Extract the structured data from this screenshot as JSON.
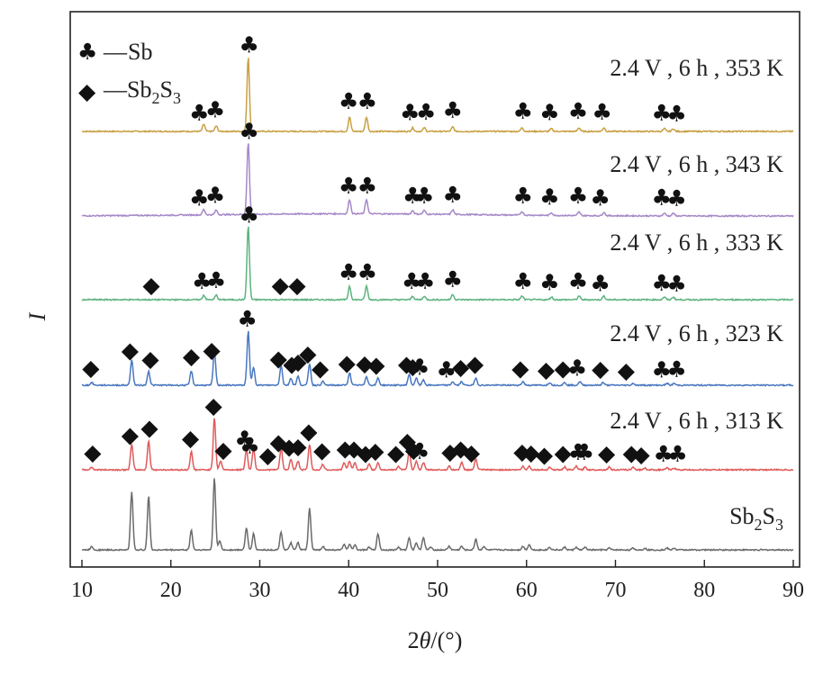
{
  "chart_data": {
    "type": "line",
    "xlabel_main": "2",
    "xlabel_theta": "θ",
    "xlabel_unit": "/(°)",
    "ylabel": "I",
    "xlim": [
      10,
      90
    ],
    "xticks": [
      10,
      20,
      30,
      40,
      50,
      60,
      70,
      80,
      90
    ],
    "yticks_visible": false,
    "legend": {
      "position": "top-left",
      "entries": [
        {
          "symbol": "♣",
          "dash": "—",
          "text": "Sb",
          "sub": "",
          "tail": ""
        },
        {
          "symbol": "◆",
          "dash": "—",
          "text": "Sb",
          "sub": "2",
          "text2": "S",
          "sub2": "3"
        }
      ]
    },
    "series": [
      {
        "name": "2.4 V , 6 h , 353 K",
        "color": "#c8a043",
        "peaks": [
          {
            "x": 23.7,
            "h": 8
          },
          {
            "x": 25.1,
            "h": 6
          },
          {
            "x": 28.7,
            "h": 82
          },
          {
            "x": 40.1,
            "h": 16
          },
          {
            "x": 42.0,
            "h": 16
          },
          {
            "x": 47.2,
            "h": 4
          },
          {
            "x": 48.5,
            "h": 4
          },
          {
            "x": 51.7,
            "h": 5
          },
          {
            "x": 59.5,
            "h": 4
          },
          {
            "x": 62.8,
            "h": 3
          },
          {
            "x": 65.9,
            "h": 4
          },
          {
            "x": 68.7,
            "h": 4
          },
          {
            "x": 75.5,
            "h": 3
          },
          {
            "x": 76.5,
            "h": 3
          }
        ],
        "markers": [
          {
            "x": 23.2,
            "sym": "♣"
          },
          {
            "x": 25.0,
            "sym": "♣"
          },
          {
            "x": 28.8,
            "sym": "♣"
          },
          {
            "x": 40.0,
            "sym": "♣"
          },
          {
            "x": 42.1,
            "sym": "♣"
          },
          {
            "x": 46.9,
            "sym": "♣"
          },
          {
            "x": 48.7,
            "sym": "♣"
          },
          {
            "x": 51.7,
            "sym": "♣"
          },
          {
            "x": 59.6,
            "sym": "♣"
          },
          {
            "x": 62.6,
            "sym": "♣"
          },
          {
            "x": 65.8,
            "sym": "♣"
          },
          {
            "x": 68.5,
            "sym": "♣"
          },
          {
            "x": 75.2,
            "sym": "♣"
          },
          {
            "x": 76.9,
            "sym": "♣"
          }
        ]
      },
      {
        "name": "2.4 V , 6 h , 343 K",
        "color": "#a688c8",
        "peaks": [
          {
            "x": 23.7,
            "h": 6
          },
          {
            "x": 25.1,
            "h": 5
          },
          {
            "x": 28.7,
            "h": 80
          },
          {
            "x": 40.1,
            "h": 16
          },
          {
            "x": 42.0,
            "h": 16
          },
          {
            "x": 47.2,
            "h": 4
          },
          {
            "x": 48.5,
            "h": 4
          },
          {
            "x": 51.7,
            "h": 5
          },
          {
            "x": 59.5,
            "h": 4
          },
          {
            "x": 62.8,
            "h": 3
          },
          {
            "x": 65.9,
            "h": 4
          },
          {
            "x": 68.7,
            "h": 4
          },
          {
            "x": 75.5,
            "h": 3
          },
          {
            "x": 76.5,
            "h": 3
          }
        ],
        "markers": [
          {
            "x": 23.2,
            "sym": "♣"
          },
          {
            "x": 25.0,
            "sym": "♣"
          },
          {
            "x": 28.8,
            "sym": "♣"
          },
          {
            "x": 40.0,
            "sym": "♣"
          },
          {
            "x": 42.1,
            "sym": "♣"
          },
          {
            "x": 47.2,
            "sym": "♣"
          },
          {
            "x": 48.5,
            "sym": "♣"
          },
          {
            "x": 51.7,
            "sym": "♣"
          },
          {
            "x": 59.6,
            "sym": "♣"
          },
          {
            "x": 62.6,
            "sym": "♣"
          },
          {
            "x": 65.8,
            "sym": "♣"
          },
          {
            "x": 68.3,
            "sym": "♣"
          },
          {
            "x": 75.2,
            "sym": "♣"
          },
          {
            "x": 76.9,
            "sym": "♣"
          }
        ]
      },
      {
        "name": "2.4 V , 6 h , 333 K",
        "color": "#5db37e",
        "peaks": [
          {
            "x": 23.7,
            "h": 5
          },
          {
            "x": 25.1,
            "h": 5
          },
          {
            "x": 28.7,
            "h": 82
          },
          {
            "x": 40.1,
            "h": 15
          },
          {
            "x": 42.0,
            "h": 15
          },
          {
            "x": 47.2,
            "h": 4
          },
          {
            "x": 48.5,
            "h": 4
          },
          {
            "x": 51.7,
            "h": 6
          },
          {
            "x": 59.5,
            "h": 4
          },
          {
            "x": 62.8,
            "h": 3
          },
          {
            "x": 65.9,
            "h": 4
          },
          {
            "x": 68.7,
            "h": 4
          },
          {
            "x": 75.5,
            "h": 3
          },
          {
            "x": 76.5,
            "h": 3
          }
        ],
        "markers": [
          {
            "x": 17.8,
            "sym": "◆"
          },
          {
            "x": 23.5,
            "sym": "♣"
          },
          {
            "x": 25.1,
            "sym": "♣"
          },
          {
            "x": 28.8,
            "sym": "♣"
          },
          {
            "x": 32.3,
            "sym": "◆"
          },
          {
            "x": 34.2,
            "sym": "◆"
          },
          {
            "x": 40.0,
            "sym": "♣"
          },
          {
            "x": 42.1,
            "sym": "♣"
          },
          {
            "x": 47.1,
            "sym": "♣"
          },
          {
            "x": 48.6,
            "sym": "♣"
          },
          {
            "x": 51.7,
            "sym": "♣"
          },
          {
            "x": 59.6,
            "sym": "♣"
          },
          {
            "x": 62.6,
            "sym": "♣"
          },
          {
            "x": 65.8,
            "sym": "♣"
          },
          {
            "x": 68.3,
            "sym": "♣"
          },
          {
            "x": 75.2,
            "sym": "♣"
          },
          {
            "x": 76.9,
            "sym": "♣"
          }
        ]
      },
      {
        "name": "2.4 V , 6 h , 323 K",
        "color": "#4a78c0",
        "peaks": [
          {
            "x": 11.1,
            "h": 3
          },
          {
            "x": 15.6,
            "h": 28
          },
          {
            "x": 17.5,
            "h": 16
          },
          {
            "x": 22.3,
            "h": 16
          },
          {
            "x": 24.9,
            "h": 38
          },
          {
            "x": 28.7,
            "h": 60
          },
          {
            "x": 29.3,
            "h": 20
          },
          {
            "x": 32.4,
            "h": 22
          },
          {
            "x": 33.5,
            "h": 8
          },
          {
            "x": 34.3,
            "h": 10
          },
          {
            "x": 35.6,
            "h": 24
          },
          {
            "x": 37.1,
            "h": 4
          },
          {
            "x": 40.1,
            "h": 14
          },
          {
            "x": 42.0,
            "h": 10
          },
          {
            "x": 43.3,
            "h": 8
          },
          {
            "x": 46.8,
            "h": 12
          },
          {
            "x": 47.6,
            "h": 8
          },
          {
            "x": 48.4,
            "h": 6
          },
          {
            "x": 51.7,
            "h": 4
          },
          {
            "x": 52.7,
            "h": 4
          },
          {
            "x": 54.3,
            "h": 8
          },
          {
            "x": 59.6,
            "h": 4
          },
          {
            "x": 62.6,
            "h": 3
          },
          {
            "x": 64.3,
            "h": 3
          },
          {
            "x": 66.0,
            "h": 4
          },
          {
            "x": 68.6,
            "h": 3
          },
          {
            "x": 72.0,
            "h": 2
          },
          {
            "x": 75.8,
            "h": 2
          },
          {
            "x": 76.6,
            "h": 2
          }
        ],
        "markers": [
          {
            "x": 11.0,
            "sym": "◆"
          },
          {
            "x": 15.4,
            "sym": "◆"
          },
          {
            "x": 17.7,
            "sym": "◆"
          },
          {
            "x": 22.3,
            "sym": "◆"
          },
          {
            "x": 24.6,
            "sym": "◆"
          },
          {
            "x": 28.6,
            "sym": "♣"
          },
          {
            "x": 32.1,
            "sym": "◆"
          },
          {
            "x": 33.6,
            "sym": "◆"
          },
          {
            "x": 34.3,
            "sym": "◆"
          },
          {
            "x": 35.4,
            "sym": "◆"
          },
          {
            "x": 36.8,
            "sym": "◆"
          },
          {
            "x": 39.8,
            "sym": "◆"
          },
          {
            "x": 41.8,
            "sym": "◆"
          },
          {
            "x": 43.1,
            "sym": "◆"
          },
          {
            "x": 46.5,
            "sym": "◆"
          },
          {
            "x": 47.2,
            "sym": "◆"
          },
          {
            "x": 48.0,
            "sym": "♣"
          },
          {
            "x": 51.0,
            "sym": "♣"
          },
          {
            "x": 52.6,
            "sym": "◆"
          },
          {
            "x": 54.2,
            "sym": "◆"
          },
          {
            "x": 59.3,
            "sym": "◆"
          },
          {
            "x": 62.2,
            "sym": "◆"
          },
          {
            "x": 64.1,
            "sym": "◆"
          },
          {
            "x": 65.7,
            "sym": "♣"
          },
          {
            "x": 68.3,
            "sym": "◆"
          },
          {
            "x": 71.2,
            "sym": "◆"
          },
          {
            "x": 75.2,
            "sym": "♣"
          },
          {
            "x": 76.9,
            "sym": "♣"
          }
        ]
      },
      {
        "name": "2.4 V , 6 h , 313 K",
        "color": "#e05a5a",
        "peaks": [
          {
            "x": 11.1,
            "h": 3
          },
          {
            "x": 15.6,
            "h": 28
          },
          {
            "x": 17.5,
            "h": 32
          },
          {
            "x": 22.3,
            "h": 20
          },
          {
            "x": 24.9,
            "h": 58
          },
          {
            "x": 25.6,
            "h": 10
          },
          {
            "x": 28.5,
            "h": 22
          },
          {
            "x": 29.3,
            "h": 24
          },
          {
            "x": 32.4,
            "h": 24
          },
          {
            "x": 33.5,
            "h": 12
          },
          {
            "x": 34.3,
            "h": 10
          },
          {
            "x": 35.6,
            "h": 28
          },
          {
            "x": 37.1,
            "h": 6
          },
          {
            "x": 39.5,
            "h": 8
          },
          {
            "x": 40.1,
            "h": 10
          },
          {
            "x": 40.7,
            "h": 8
          },
          {
            "x": 42.3,
            "h": 6
          },
          {
            "x": 43.3,
            "h": 8
          },
          {
            "x": 45.6,
            "h": 4
          },
          {
            "x": 46.8,
            "h": 20
          },
          {
            "x": 47.6,
            "h": 10
          },
          {
            "x": 48.4,
            "h": 8
          },
          {
            "x": 51.3,
            "h": 4
          },
          {
            "x": 52.7,
            "h": 8
          },
          {
            "x": 54.3,
            "h": 12
          },
          {
            "x": 59.6,
            "h": 4
          },
          {
            "x": 60.3,
            "h": 4
          },
          {
            "x": 62.6,
            "h": 3
          },
          {
            "x": 64.3,
            "h": 3
          },
          {
            "x": 65.6,
            "h": 4
          },
          {
            "x": 66.6,
            "h": 3
          },
          {
            "x": 69.3,
            "h": 3
          },
          {
            "x": 72.0,
            "h": 3
          },
          {
            "x": 73.3,
            "h": 2
          },
          {
            "x": 75.8,
            "h": 2
          },
          {
            "x": 76.6,
            "h": 2
          }
        ],
        "markers": [
          {
            "x": 11.2,
            "sym": "◆"
          },
          {
            "x": 15.4,
            "sym": "◆"
          },
          {
            "x": 17.6,
            "sym": "◆"
          },
          {
            "x": 22.2,
            "sym": "◆"
          },
          {
            "x": 24.8,
            "sym": "◆"
          },
          {
            "x": 25.9,
            "sym": "◆"
          },
          {
            "x": 28.3,
            "sym": "♣"
          },
          {
            "x": 28.9,
            "sym": "♣"
          },
          {
            "x": 30.9,
            "sym": "◆"
          },
          {
            "x": 32.1,
            "sym": "◆"
          },
          {
            "x": 33.3,
            "sym": "◆"
          },
          {
            "x": 34.3,
            "sym": "◆"
          },
          {
            "x": 35.5,
            "sym": "◆"
          },
          {
            "x": 37.0,
            "sym": "◆"
          },
          {
            "x": 39.6,
            "sym": "◆"
          },
          {
            "x": 40.6,
            "sym": "◆"
          },
          {
            "x": 41.9,
            "sym": "◆"
          },
          {
            "x": 43.0,
            "sym": "◆"
          },
          {
            "x": 45.3,
            "sym": "◆"
          },
          {
            "x": 46.6,
            "sym": "◆"
          },
          {
            "x": 47.3,
            "sym": "◆"
          },
          {
            "x": 48.0,
            "sym": "♣"
          },
          {
            "x": 51.4,
            "sym": "◆"
          },
          {
            "x": 52.6,
            "sym": "◆"
          },
          {
            "x": 53.8,
            "sym": "◆"
          },
          {
            "x": 59.5,
            "sym": "◆"
          },
          {
            "x": 60.5,
            "sym": "◆"
          },
          {
            "x": 62.0,
            "sym": "◆"
          },
          {
            "x": 64.1,
            "sym": "◆"
          },
          {
            "x": 65.8,
            "sym": "♣"
          },
          {
            "x": 66.5,
            "sym": "♣"
          },
          {
            "x": 69.0,
            "sym": "◆"
          },
          {
            "x": 71.8,
            "sym": "◆"
          },
          {
            "x": 72.9,
            "sym": "◆"
          },
          {
            "x": 75.4,
            "sym": "♣"
          },
          {
            "x": 77.0,
            "sym": "♣"
          }
        ]
      },
      {
        "name": "Sb",
        "name_sub": "2",
        "name2": "S",
        "name_sub2": "3",
        "color": "#6b6b6b",
        "peaks": [
          {
            "x": 11.1,
            "h": 4
          },
          {
            "x": 15.6,
            "h": 64
          },
          {
            "x": 17.5,
            "h": 60
          },
          {
            "x": 22.3,
            "h": 22
          },
          {
            "x": 24.9,
            "h": 80
          },
          {
            "x": 25.5,
            "h": 10
          },
          {
            "x": 28.5,
            "h": 24
          },
          {
            "x": 29.3,
            "h": 18
          },
          {
            "x": 32.4,
            "h": 20
          },
          {
            "x": 33.5,
            "h": 8
          },
          {
            "x": 34.3,
            "h": 8
          },
          {
            "x": 35.6,
            "h": 46
          },
          {
            "x": 37.1,
            "h": 4
          },
          {
            "x": 39.5,
            "h": 6
          },
          {
            "x": 40.1,
            "h": 6
          },
          {
            "x": 40.7,
            "h": 6
          },
          {
            "x": 42.3,
            "h": 3
          },
          {
            "x": 43.3,
            "h": 18
          },
          {
            "x": 45.6,
            "h": 3
          },
          {
            "x": 46.8,
            "h": 14
          },
          {
            "x": 47.6,
            "h": 8
          },
          {
            "x": 48.4,
            "h": 14
          },
          {
            "x": 49.2,
            "h": 3
          },
          {
            "x": 51.3,
            "h": 4
          },
          {
            "x": 52.7,
            "h": 4
          },
          {
            "x": 54.3,
            "h": 12
          },
          {
            "x": 55.2,
            "h": 4
          },
          {
            "x": 59.6,
            "h": 4
          },
          {
            "x": 60.3,
            "h": 6
          },
          {
            "x": 62.6,
            "h": 3
          },
          {
            "x": 64.3,
            "h": 3
          },
          {
            "x": 65.6,
            "h": 3
          },
          {
            "x": 66.6,
            "h": 3
          },
          {
            "x": 69.3,
            "h": 2
          },
          {
            "x": 72.0,
            "h": 2
          },
          {
            "x": 73.3,
            "h": 2
          },
          {
            "x": 75.8,
            "h": 2
          },
          {
            "x": 76.6,
            "h": 2
          }
        ],
        "markers": []
      }
    ]
  }
}
